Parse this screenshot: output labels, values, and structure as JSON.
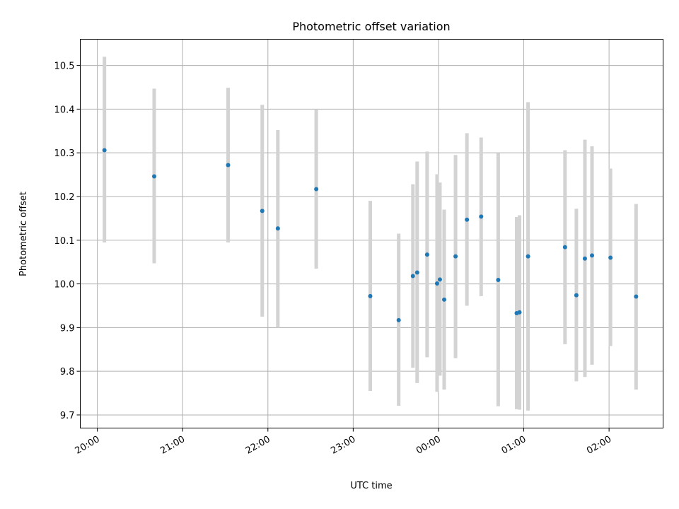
{
  "chart_data": {
    "type": "scatter",
    "title": "Photometric offset variation",
    "xlabel": "UTC time",
    "ylabel": "Photometric offset",
    "x_ticks": [
      "20:00",
      "21:00",
      "22:00",
      "23:00",
      "00:00",
      "01:00",
      "02:00"
    ],
    "y_ticks": [
      "9.7",
      "9.8",
      "9.9",
      "10.0",
      "10.1",
      "10.2",
      "10.3",
      "10.4",
      "10.5"
    ],
    "xlim": [
      "19:48",
      "02:38"
    ],
    "ylim": [
      9.67,
      10.56
    ],
    "grid": true,
    "series": [
      {
        "marker_color": "#1f77b4",
        "errorbar_color": "#d3d3d3",
        "points": [
          {
            "x": "20:05",
            "y": 10.306,
            "ylo": 10.095,
            "yhi": 10.52
          },
          {
            "x": "20:40",
            "y": 10.246,
            "ylo": 10.047,
            "yhi": 10.447
          },
          {
            "x": "21:32",
            "y": 10.272,
            "ylo": 10.095,
            "yhi": 10.449
          },
          {
            "x": "21:56",
            "y": 10.167,
            "ylo": 9.925,
            "yhi": 10.41
          },
          {
            "x": "22:07",
            "y": 10.127,
            "ylo": 9.9,
            "yhi": 10.352
          },
          {
            "x": "22:34",
            "y": 10.217,
            "ylo": 10.035,
            "yhi": 10.4
          },
          {
            "x": "23:12",
            "y": 9.972,
            "ylo": 9.755,
            "yhi": 10.19
          },
          {
            "x": "23:32",
            "y": 9.917,
            "ylo": 9.721,
            "yhi": 10.115
          },
          {
            "x": "23:42",
            "y": 10.018,
            "ylo": 9.808,
            "yhi": 10.228
          },
          {
            "x": "23:45",
            "y": 10.026,
            "ylo": 9.773,
            "yhi": 10.28
          },
          {
            "x": "23:52",
            "y": 10.067,
            "ylo": 9.832,
            "yhi": 10.303
          },
          {
            "x": "23:59",
            "y": 10.001,
            "ylo": 9.753,
            "yhi": 10.251
          },
          {
            "x": "00:01",
            "y": 10.01,
            "ylo": 9.79,
            "yhi": 10.232
          },
          {
            "x": "00:04",
            "y": 9.964,
            "ylo": 9.758,
            "yhi": 10.17
          },
          {
            "x": "00:12",
            "y": 10.063,
            "ylo": 9.83,
            "yhi": 10.295
          },
          {
            "x": "00:20",
            "y": 10.147,
            "ylo": 9.95,
            "yhi": 10.345
          },
          {
            "x": "00:30",
            "y": 10.154,
            "ylo": 9.972,
            "yhi": 10.335
          },
          {
            "x": "00:42",
            "y": 10.009,
            "ylo": 9.72,
            "yhi": 10.299
          },
          {
            "x": "00:55",
            "y": 9.933,
            "ylo": 9.713,
            "yhi": 10.153
          },
          {
            "x": "00:57",
            "y": 9.935,
            "ylo": 9.712,
            "yhi": 10.157
          },
          {
            "x": "01:03",
            "y": 10.063,
            "ylo": 9.71,
            "yhi": 10.416
          },
          {
            "x": "01:29",
            "y": 10.084,
            "ylo": 9.862,
            "yhi": 10.306
          },
          {
            "x": "01:37",
            "y": 9.974,
            "ylo": 9.777,
            "yhi": 10.172
          },
          {
            "x": "01:43",
            "y": 10.058,
            "ylo": 9.787,
            "yhi": 10.33
          },
          {
            "x": "01:48",
            "y": 10.065,
            "ylo": 9.815,
            "yhi": 10.315
          },
          {
            "x": "02:01",
            "y": 10.06,
            "ylo": 9.858,
            "yhi": 10.264
          },
          {
            "x": "02:19",
            "y": 9.971,
            "ylo": 9.758,
            "yhi": 10.183
          }
        ]
      }
    ]
  }
}
